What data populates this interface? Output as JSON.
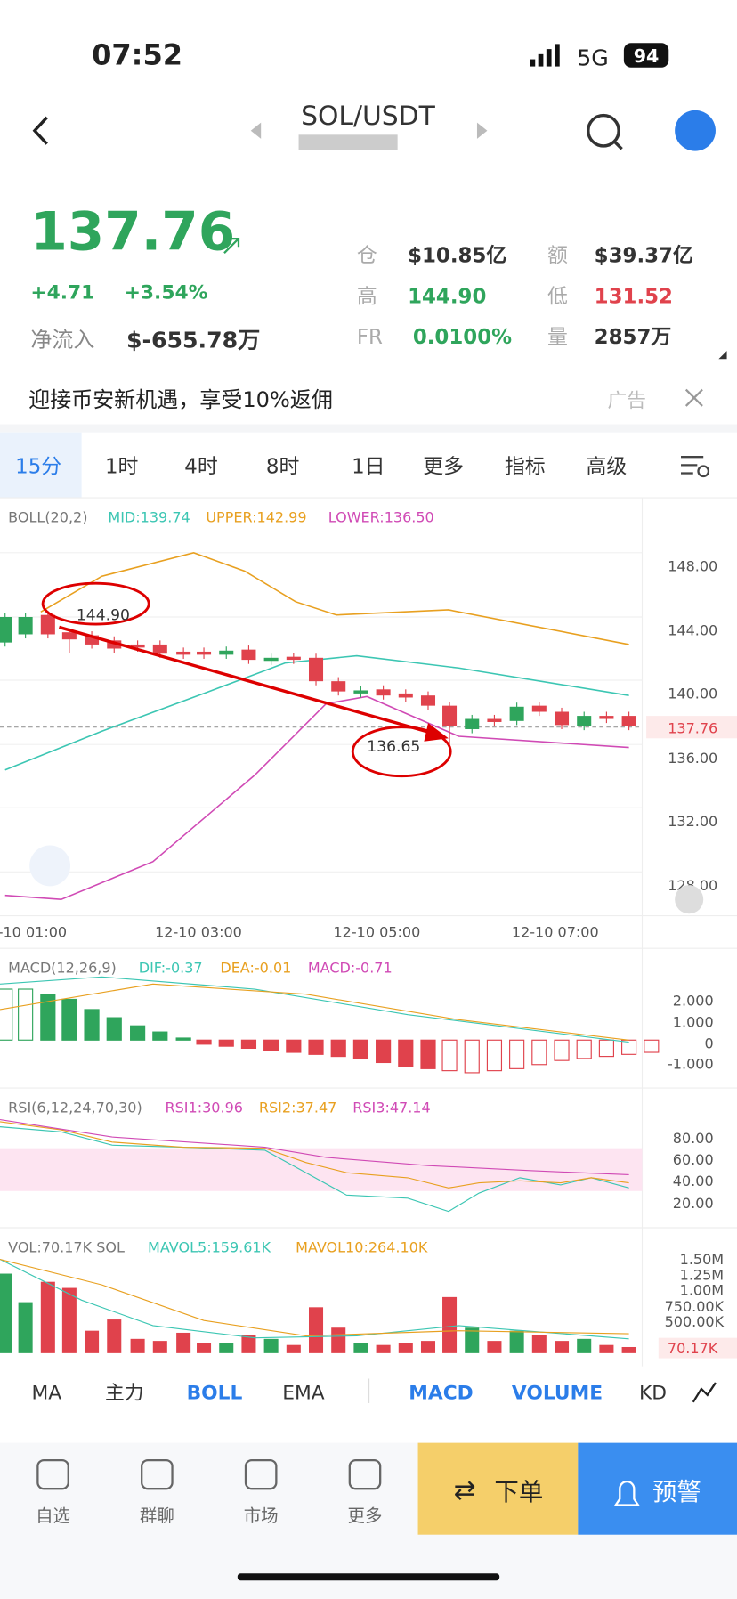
{
  "status": {
    "time": "07:52",
    "network": "5G",
    "battery": "94"
  },
  "header": {
    "pair": "SOL/USDT"
  },
  "price": {
    "last": "137.76",
    "change": "+4.71",
    "change_pct": "+3.54%",
    "netflow_label": "净流入",
    "netflow": "$-655.78万"
  },
  "stats": [
    {
      "label": "仓",
      "value": "$10.85亿"
    },
    {
      "label": "额",
      "value": "$39.37亿"
    },
    {
      "label": "高",
      "value": "144.90"
    },
    {
      "label": "低",
      "value": "131.52"
    },
    {
      "label": "FR",
      "value": "0.0100%"
    },
    {
      "label": "量",
      "value": "2857万"
    }
  ],
  "banner": {
    "text": "迎接币安新机遇，享受10%返佣",
    "tag": "广告"
  },
  "intervals": [
    "15分",
    "1时",
    "4时",
    "8时",
    "1日",
    "更多",
    "指标",
    "高级"
  ],
  "main_chart": {
    "legend": [
      "BOLL(20,2)",
      "MID:139.74",
      "UPPER:142.99",
      "LOWER:136.50"
    ],
    "price_axis": [
      "148.00",
      "144.00",
      "140.00",
      "136.00",
      "132.00",
      "128.00"
    ],
    "last_price": "137.76",
    "annotations": [
      "144.90",
      "136.65"
    ],
    "time_axis": [
      "-10 01:00",
      "12-10 03:00",
      "12-10 05:00",
      "12-10 07:00"
    ]
  },
  "macd": {
    "legend": [
      "MACD(12,26,9)",
      "DIF:-0.37",
      "DEA:-0.01",
      "MACD:-0.71"
    ],
    "axis": [
      "2.000",
      "1.000",
      "0",
      "-1.000"
    ]
  },
  "rsi": {
    "legend": [
      "RSI(6,12,24,70,30)",
      "RSI1:30.96",
      "RSI2:37.47",
      "RSI3:47.14"
    ],
    "axis": [
      "80.00",
      "60.00",
      "40.00",
      "20.00"
    ]
  },
  "vol": {
    "legend": [
      "VOL:70.17K SOL",
      "MAVOL5:159.61K",
      "MAVOL10:264.10K"
    ],
    "axis": [
      "1.50M",
      "1.25M",
      "1.00M",
      "750.00K",
      "500.00K"
    ],
    "last": "70.17K"
  },
  "indicators": [
    "MA",
    "主力",
    "BOLL",
    "EMA",
    "MACD",
    "VOLUME",
    "KD"
  ],
  "nav": [
    "自选",
    "群聊",
    "市场",
    "更多"
  ],
  "actions": [
    "下单",
    "预警"
  ]
}
